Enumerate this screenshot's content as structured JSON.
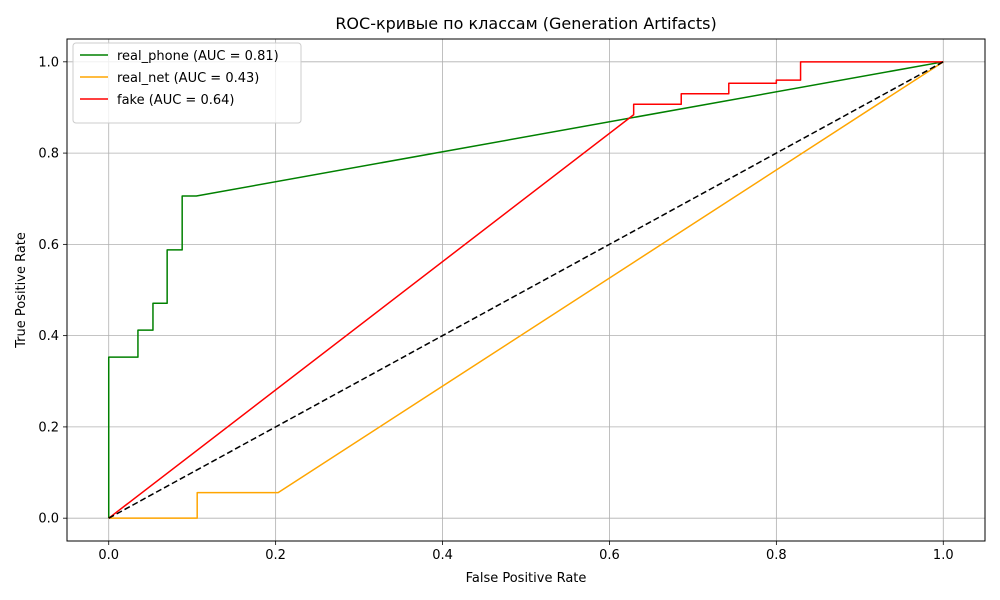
{
  "chart_data": {
    "type": "line",
    "title": "ROC-кривые по классам (Generation Artifacts)",
    "xlabel": "False Positive Rate",
    "ylabel": "True Positive Rate",
    "xlim": [
      -0.05,
      1.05
    ],
    "ylim": [
      -0.05,
      1.05
    ],
    "x_ticks": [
      "0.0",
      "0.2",
      "0.4",
      "0.6",
      "0.8",
      "1.0"
    ],
    "y_ticks": [
      "0.0",
      "0.2",
      "0.4",
      "0.6",
      "0.8",
      "1.0"
    ],
    "grid": true,
    "legend_position": "top-left",
    "series": [
      {
        "name": "real_phone (AUC = 0.81)",
        "color": "#008000",
        "x": [
          0.0,
          0.0,
          0.035,
          0.035,
          0.053,
          0.053,
          0.07,
          0.07,
          0.088,
          0.088,
          0.105,
          1.0
        ],
        "y": [
          0.0,
          0.353,
          0.353,
          0.412,
          0.412,
          0.471,
          0.471,
          0.588,
          0.588,
          0.706,
          0.706,
          1.0
        ]
      },
      {
        "name": "real_net (AUC = 0.43)",
        "color": "#ffa500",
        "x": [
          0.0,
          0.106,
          0.106,
          0.203,
          1.0
        ],
        "y": [
          0.0,
          0.0,
          0.056,
          0.056,
          1.0
        ]
      },
      {
        "name": "fake (AUC = 0.64)",
        "color": "#ff0000",
        "x": [
          0.0,
          0.629,
          0.629,
          0.686,
          0.686,
          0.743,
          0.743,
          0.8,
          0.8,
          0.829,
          0.829,
          1.0
        ],
        "y": [
          0.0,
          0.884,
          0.907,
          0.907,
          0.93,
          0.93,
          0.953,
          0.953,
          0.96,
          0.96,
          1.0,
          1.0
        ]
      },
      {
        "color": "#000000",
        "dashed": true,
        "x": [
          0.0,
          1.0
        ],
        "y": [
          0.0,
          1.0
        ]
      }
    ]
  }
}
